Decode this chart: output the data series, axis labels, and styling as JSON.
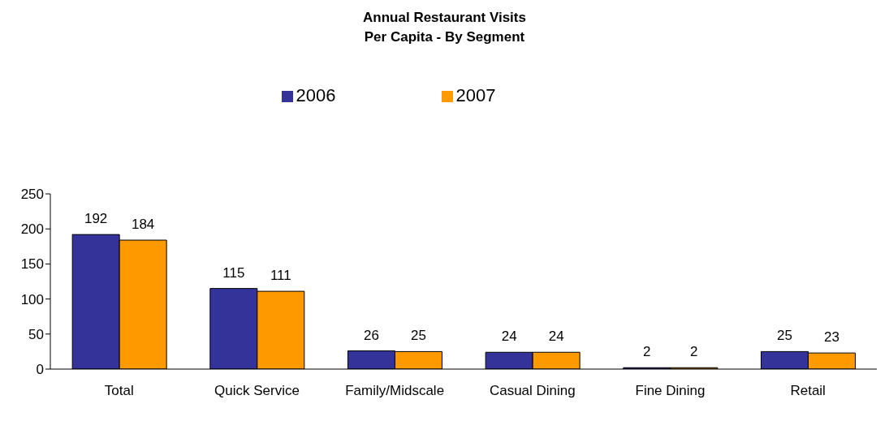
{
  "chart_data": {
    "type": "bar",
    "title": "Annual Restaurant Visits\nPer Capita - By Segment",
    "categories": [
      "Total",
      "Quick Service",
      "Family/Midscale",
      "Casual Dining",
      "Fine Dining",
      "Retail"
    ],
    "series": [
      {
        "name": "2006",
        "color": "#333399",
        "values": [
          192,
          115,
          26,
          24,
          2,
          25
        ]
      },
      {
        "name": "2007",
        "color": "#ff9900",
        "values": [
          184,
          111,
          25,
          24,
          2,
          23
        ]
      }
    ],
    "ylim": [
      0,
      250
    ],
    "yticks": [
      0,
      50,
      100,
      150,
      200,
      250
    ],
    "grid": false,
    "legend": "top",
    "data_labels": true
  }
}
